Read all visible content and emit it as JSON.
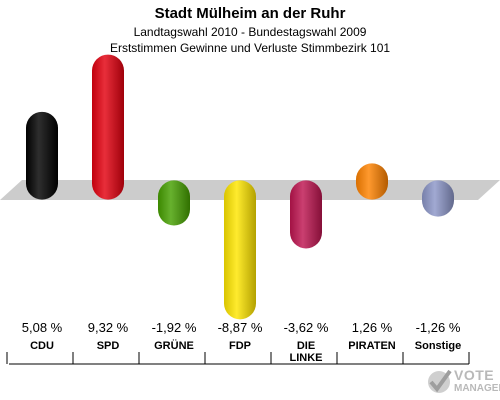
{
  "header": {
    "title": "Stadt Mülheim an der Ruhr",
    "subtitle1": "Landtagswahl 2010 - Bundestagswahl 2009",
    "subtitle2": "Erststimmen Gewinne und Verluste Stimmbezirk 101"
  },
  "chart_data": {
    "type": "bar",
    "title": "Stadt Mülheim an der Ruhr",
    "subtitle": "Landtagswahl 2010 - Bundestagswahl 2009 / Erststimmen Gewinne und Verluste Stimmbezirk 101",
    "xlabel": "",
    "ylabel": "",
    "categories": [
      "CDU",
      "SPD",
      "GRÜNE",
      "FDP",
      "DIE LINKE",
      "PIRATEN",
      "Sonstige"
    ],
    "category_lines": [
      [
        "CDU"
      ],
      [
        "SPD"
      ],
      [
        "GRÜNE"
      ],
      [
        "FDP"
      ],
      [
        "DIE",
        "LINKE"
      ],
      [
        "PIRATEN"
      ],
      [
        "Sonstige"
      ]
    ],
    "values": [
      5.08,
      9.32,
      -1.92,
      -8.87,
      -3.62,
      1.26,
      -1.26
    ],
    "value_labels": [
      "5,08 %",
      "9,32 %",
      "-1,92 %",
      "-8,87 %",
      "-3,62 %",
      "1,26 %",
      "-1,26 %"
    ],
    "colors": [
      "#000000",
      "#e3000f",
      "#46a000",
      "#ffe600",
      "#be1550",
      "#ff8200",
      "#8c96c8"
    ],
    "ylim": [
      -9,
      10
    ],
    "grid": false,
    "legend": "none"
  },
  "logo": {
    "line1": "VOTE",
    "line2": "MANAGER"
  }
}
